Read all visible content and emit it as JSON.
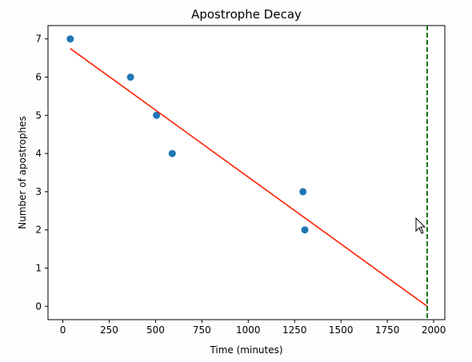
{
  "chart_data": {
    "type": "scatter",
    "title": "Apostrophe Decay",
    "xlabel": "Time (minutes)",
    "ylabel": "Number of apostrophes",
    "xlim": [
      -80,
      2060
    ],
    "ylim": [
      -0.35,
      7.35
    ],
    "xticks": [
      0,
      250,
      500,
      750,
      1000,
      1250,
      1500,
      1750,
      2000
    ],
    "yticks": [
      0,
      1,
      2,
      3,
      4,
      5,
      6,
      7
    ],
    "grid": false,
    "points": [
      {
        "x": 40,
        "y": 7
      },
      {
        "x": 365,
        "y": 6
      },
      {
        "x": 505,
        "y": 5
      },
      {
        "x": 590,
        "y": 4
      },
      {
        "x": 1295,
        "y": 3
      },
      {
        "x": 1305,
        "y": 2
      }
    ],
    "fit_line": {
      "x": [
        40,
        1965
      ],
      "y": [
        6.75,
        0
      ]
    },
    "vline": {
      "x": 1965
    },
    "colors": {
      "points": "#1f77b4",
      "fit_line": "#ff2000",
      "vline": "#006400"
    }
  }
}
